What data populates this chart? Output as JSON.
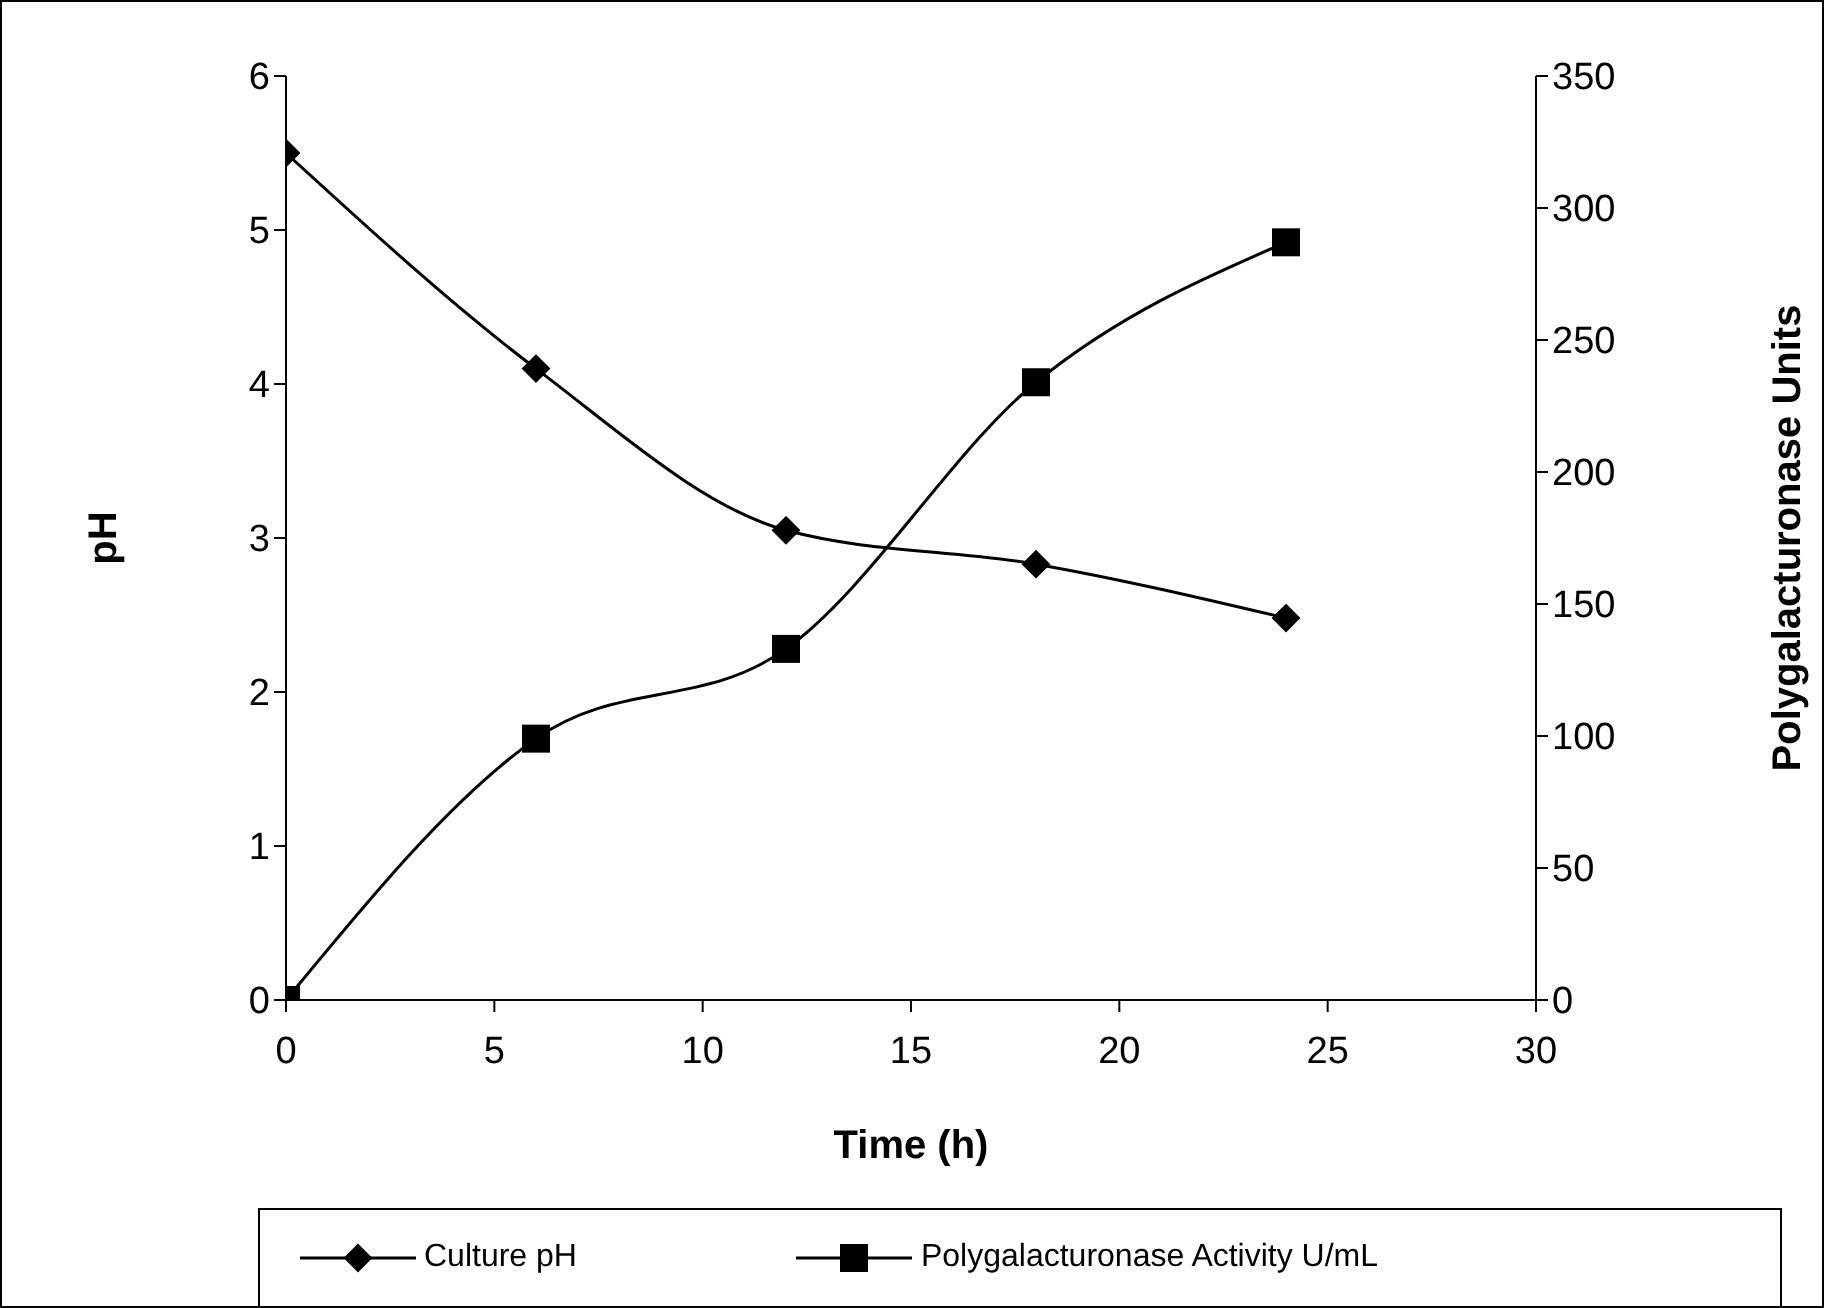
{
  "chart_data": {
    "type": "line",
    "xlabel": "Time (h)",
    "ylabel": "pH",
    "y2label": "Polygalacturonase Units",
    "x": [
      0,
      6,
      12,
      18,
      24
    ],
    "series": [
      {
        "name": "Culture pH",
        "color": "#000000",
        "marker": "diamond",
        "values": [
          5.5,
          4.1,
          3.05,
          2.83,
          2.48
        ]
      },
      {
        "name": "Polygalacturonase Activity U/mL",
        "color": "#000000",
        "marker": "square",
        "axis": "y2",
        "values": [
          0,
          99,
          133,
          234,
          287
        ]
      }
    ],
    "xlim": [
      0,
      30
    ],
    "xticks": [
      0,
      5,
      10,
      15,
      20,
      25,
      30
    ],
    "ylim": [
      0,
      6
    ],
    "yticks": [
      0,
      1,
      2,
      3,
      4,
      5,
      6
    ],
    "y2lim": [
      0,
      350
    ],
    "y2ticks": [
      0,
      50,
      100,
      150,
      200,
      250,
      300,
      350
    ],
    "grid": false,
    "legend": "bottom",
    "line_style": "solid"
  }
}
